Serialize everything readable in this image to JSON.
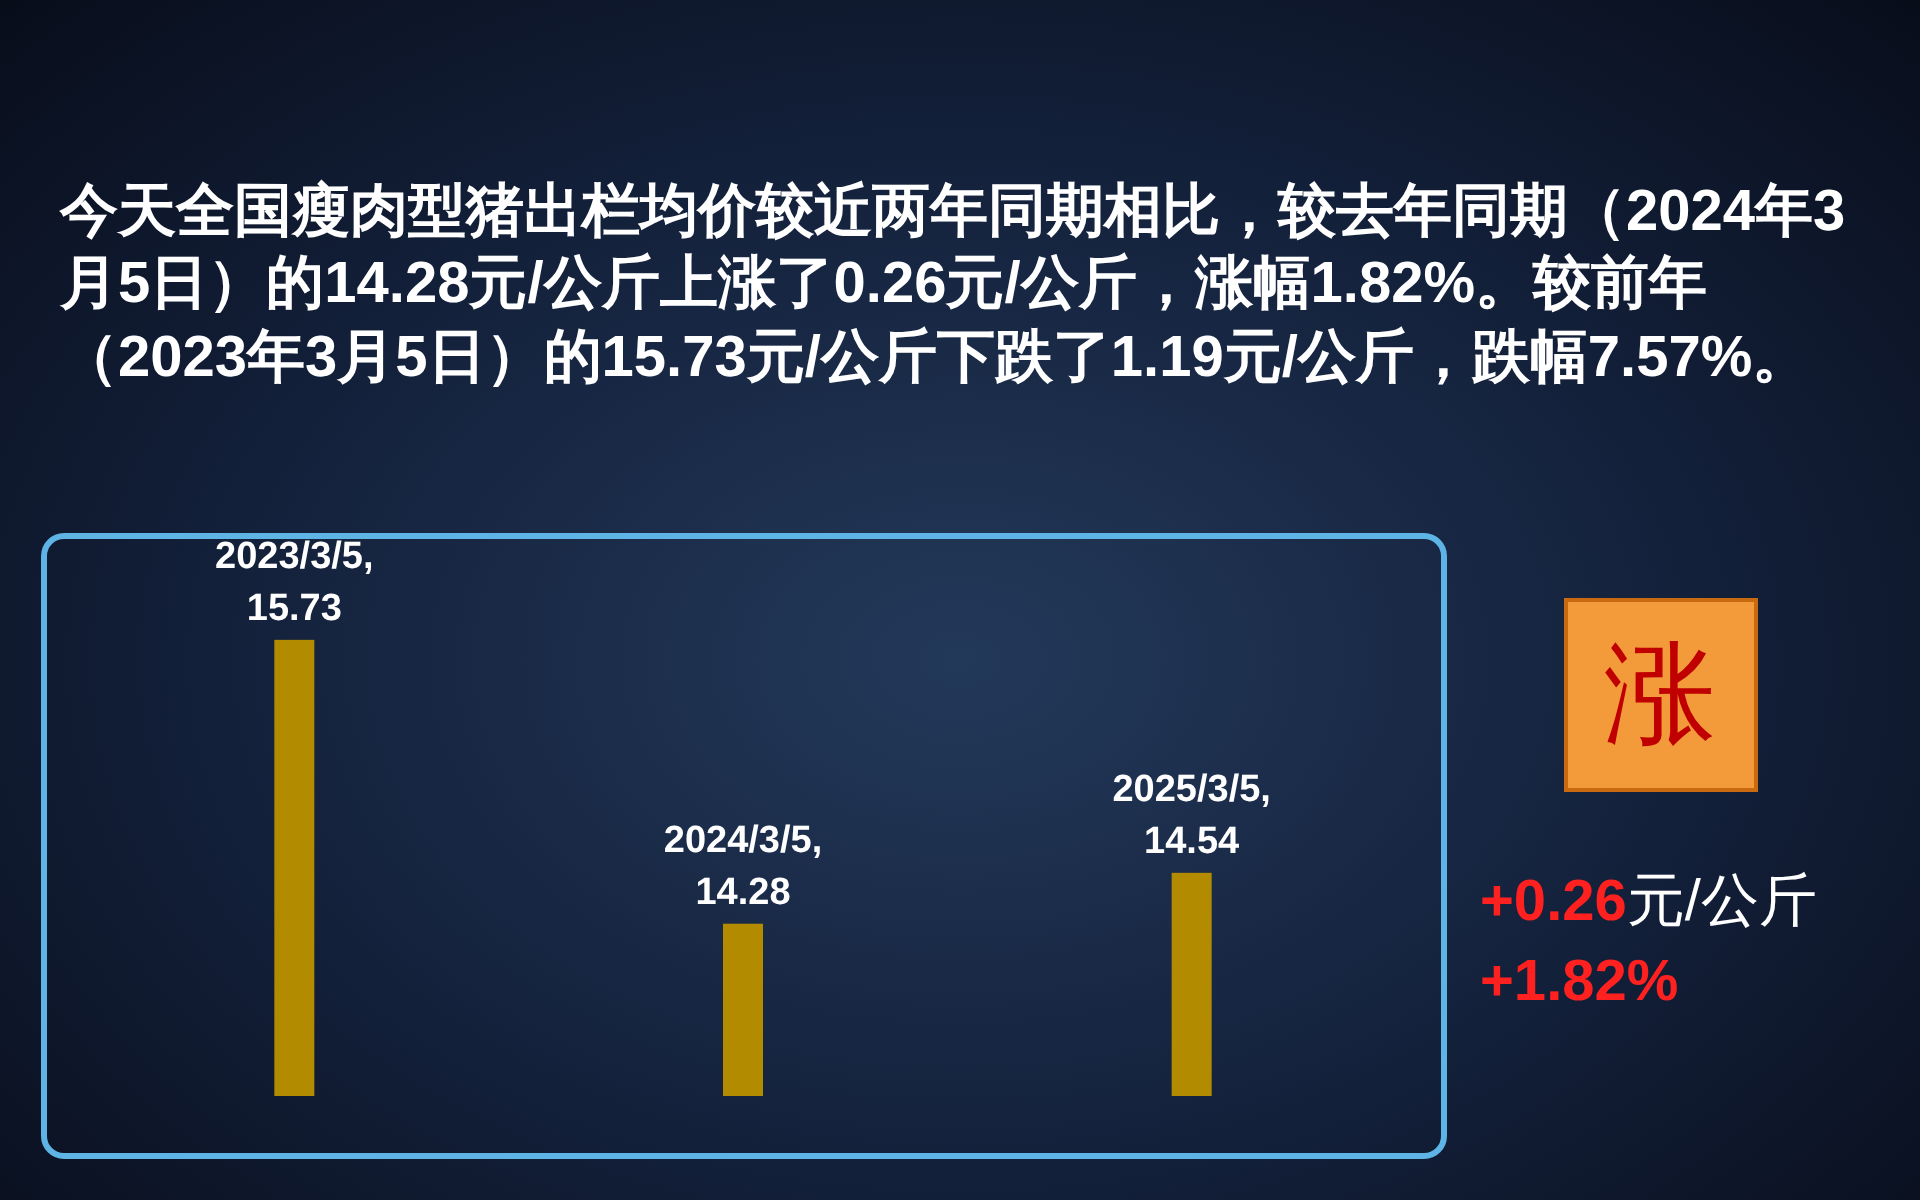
{
  "chart_data": {
    "type": "bar",
    "title": "今天全国瘦肉型猪出栏均价较近两年同期相比，较去年同期（2024年3月5日）的14.28元/公斤上涨了0.26元/公斤，涨幅1.82%。较前年（2023年3月5日）的15.73元/公斤下跌了1.19元/公斤，跌幅7.57%。",
    "categories": [
      null,
      null,
      null
    ],
    "values": [
      15.73,
      14.28,
      14.54
    ],
    "value_labels": [
      "2023/3/5,\n15.73",
      "2024/3/5,\n14.28",
      "2025/3/5,\n14.54"
    ],
    "color": "#b38b00",
    "ylim": [
      13.4,
      16.24
    ],
    "annotations": [
      "涨",
      "+0.26元/公斤",
      "+1.82%"
    ]
  }
}
